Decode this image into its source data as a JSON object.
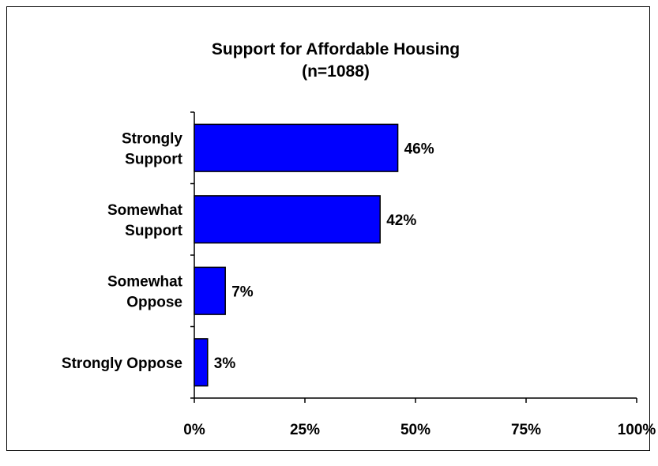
{
  "chart_data": {
    "type": "bar",
    "orientation": "horizontal",
    "title": "Support for Affordable Housing",
    "subtitle": "(n=1088)",
    "categories": [
      [
        "Strongly",
        "Support"
      ],
      [
        "Somewhat",
        "Support"
      ],
      [
        "Somewhat",
        "Oppose"
      ],
      [
        "Strongly Oppose"
      ]
    ],
    "values": [
      46,
      42,
      7,
      3
    ],
    "value_labels": [
      "46%",
      "42%",
      "7%",
      "3%"
    ],
    "xlim": [
      0,
      100
    ],
    "x_ticks": [
      0,
      25,
      50,
      75,
      100
    ],
    "x_tick_labels": [
      "0%",
      "25%",
      "50%",
      "75%",
      "100%"
    ],
    "bar_color": "#0000FF",
    "grid": false,
    "legend": "none"
  }
}
